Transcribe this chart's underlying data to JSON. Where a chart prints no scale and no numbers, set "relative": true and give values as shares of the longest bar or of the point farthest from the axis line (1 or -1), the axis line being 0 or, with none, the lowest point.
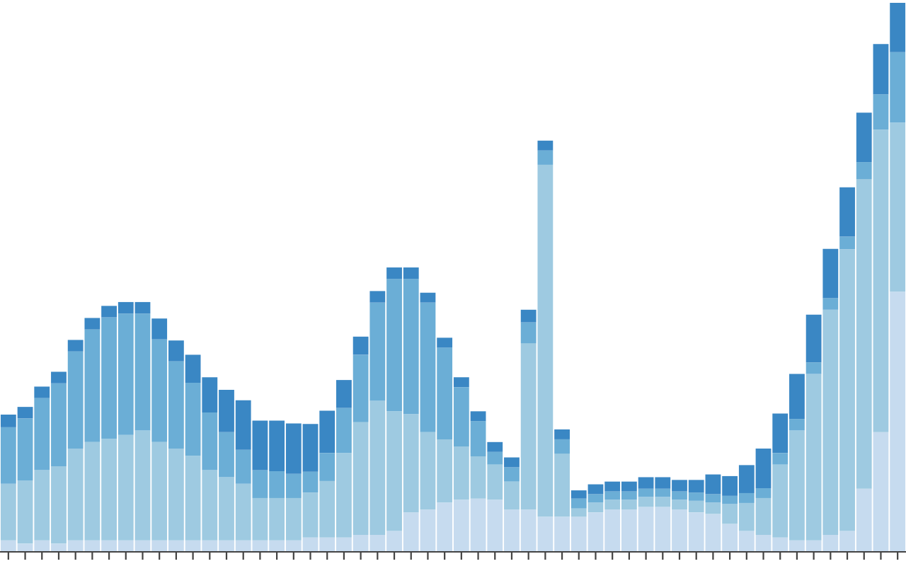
{
  "chart_data": {
    "type": "bar",
    "stacked": true,
    "relative": true,
    "grid": false,
    "legend": false,
    "categories": [
      null,
      null,
      null,
      null,
      null,
      null,
      null,
      null,
      null,
      null,
      null,
      null,
      null,
      null,
      null,
      null,
      null,
      null,
      null,
      null,
      null,
      null,
      null,
      null,
      null,
      null,
      null,
      null,
      null,
      null,
      null,
      null,
      null,
      null,
      null,
      null,
      null,
      null,
      null,
      null,
      null,
      null,
      null,
      null,
      null,
      null,
      null,
      null,
      null,
      null,
      null,
      null,
      null,
      null
    ],
    "series": [
      {
        "color": "#c6dbef",
        "values": [
          0.021,
          0.015,
          0.021,
          0.015,
          0.021,
          0.021,
          0.021,
          0.021,
          0.021,
          0.021,
          0.021,
          0.021,
          0.021,
          0.021,
          0.021,
          0.021,
          0.021,
          0.021,
          0.026,
          0.026,
          0.026,
          0.031,
          0.031,
          0.038,
          0.072,
          0.077,
          0.09,
          0.095,
          0.097,
          0.095,
          0.077,
          0.077,
          0.064,
          0.064,
          0.064,
          0.072,
          0.077,
          0.077,
          0.082,
          0.082,
          0.077,
          0.072,
          0.069,
          0.051,
          0.038,
          0.031,
          0.026,
          0.021,
          0.021,
          0.031,
          0.038,
          0.115,
          0.218,
          0.474
        ]
      },
      {
        "color": "#9ecae1",
        "values": [
          0.103,
          0.115,
          0.128,
          0.141,
          0.167,
          0.179,
          0.185,
          0.192,
          0.2,
          0.179,
          0.167,
          0.154,
          0.128,
          0.115,
          0.103,
          0.077,
          0.077,
          0.077,
          0.082,
          0.103,
          0.154,
          0.205,
          0.244,
          0.218,
          0.179,
          0.141,
          0.115,
          0.097,
          0.077,
          0.064,
          0.051,
          0.303,
          0.641,
          0.115,
          0.015,
          0.018,
          0.018,
          0.018,
          0.018,
          0.018,
          0.018,
          0.021,
          0.021,
          0.036,
          0.051,
          0.067,
          0.133,
          0.2,
          0.303,
          0.41,
          0.513,
          0.564,
          0.551,
          0.308
        ]
      },
      {
        "color": "#6baed6",
        "values": [
          0.103,
          0.113,
          0.131,
          0.151,
          0.177,
          0.205,
          0.221,
          0.221,
          0.213,
          0.187,
          0.159,
          0.133,
          0.105,
          0.082,
          0.062,
          0.051,
          0.049,
          0.044,
          0.038,
          0.051,
          0.082,
          0.123,
          0.179,
          0.241,
          0.246,
          0.236,
          0.167,
          0.108,
          0.064,
          0.023,
          0.026,
          0.038,
          0.026,
          0.026,
          0.018,
          0.015,
          0.015,
          0.015,
          0.015,
          0.015,
          0.015,
          0.015,
          0.015,
          0.015,
          0.018,
          0.018,
          0.021,
          0.021,
          0.021,
          0.021,
          0.023,
          0.031,
          0.064,
          0.128
        ]
      },
      {
        "color": "#3a87c4",
        "values": [
          0.023,
          0.021,
          0.021,
          0.021,
          0.021,
          0.021,
          0.021,
          0.021,
          0.021,
          0.038,
          0.038,
          0.051,
          0.064,
          0.077,
          0.09,
          0.09,
          0.092,
          0.092,
          0.087,
          0.077,
          0.051,
          0.033,
          0.021,
          0.021,
          0.021,
          0.018,
          0.018,
          0.018,
          0.018,
          0.018,
          0.018,
          0.023,
          0.018,
          0.018,
          0.015,
          0.018,
          0.018,
          0.018,
          0.021,
          0.021,
          0.021,
          0.023,
          0.036,
          0.036,
          0.051,
          0.072,
          0.072,
          0.082,
          0.087,
          0.09,
          0.09,
          0.09,
          0.092,
          0.09
        ]
      }
    ]
  }
}
